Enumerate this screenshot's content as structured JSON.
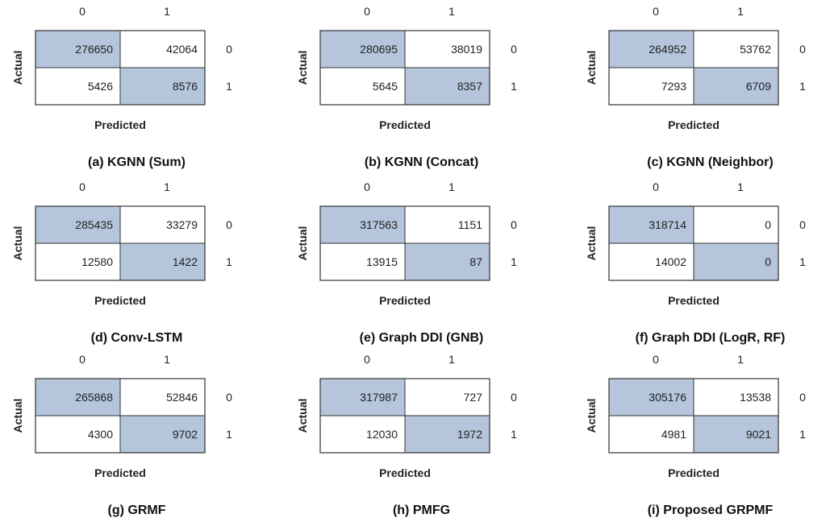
{
  "colors": {
    "diagonal": "#b4c5dc",
    "off_diagonal": "#ffffff",
    "border": "#333333"
  },
  "chart_data": [
    {
      "type": "heatmap",
      "title": "(a) KGNN (Sum)",
      "xlabel": "Predicted",
      "ylabel": "Actual",
      "col_labels": [
        "0",
        "1"
      ],
      "row_labels": [
        "0",
        "1"
      ],
      "matrix": [
        [
          276650,
          42064
        ],
        [
          5426,
          8576
        ]
      ]
    },
    {
      "type": "heatmap",
      "title": "(b) KGNN (Concat)",
      "xlabel": "Predicted",
      "ylabel": "Actual",
      "col_labels": [
        "0",
        "1"
      ],
      "row_labels": [
        "0",
        "1"
      ],
      "matrix": [
        [
          280695,
          38019
        ],
        [
          5645,
          8357
        ]
      ]
    },
    {
      "type": "heatmap",
      "title": "(c) KGNN (Neighbor)",
      "xlabel": "Predicted",
      "ylabel": "Actual",
      "col_labels": [
        "0",
        "1"
      ],
      "row_labels": [
        "0",
        "1"
      ],
      "matrix": [
        [
          264952,
          53762
        ],
        [
          7293,
          6709
        ]
      ]
    },
    {
      "type": "heatmap",
      "title": "(d) Conv-LSTM",
      "xlabel": "Predicted",
      "ylabel": "Actual",
      "col_labels": [
        "0",
        "1"
      ],
      "row_labels": [
        "0",
        "1"
      ],
      "matrix": [
        [
          285435,
          33279
        ],
        [
          12580,
          1422
        ]
      ]
    },
    {
      "type": "heatmap",
      "title": "(e) Graph DDI (GNB)",
      "xlabel": "Predicted",
      "ylabel": "Actual",
      "col_labels": [
        "0",
        "1"
      ],
      "row_labels": [
        "0",
        "1"
      ],
      "matrix": [
        [
          317563,
          1151
        ],
        [
          13915,
          87
        ]
      ]
    },
    {
      "type": "heatmap",
      "title": "(f) Graph DDI (LogR, RF)",
      "xlabel": "Predicted",
      "ylabel": "Actual",
      "col_labels": [
        "0",
        "1"
      ],
      "row_labels": [
        "0",
        "1"
      ],
      "matrix": [
        [
          318714,
          0
        ],
        [
          14002,
          0
        ]
      ]
    },
    {
      "type": "heatmap",
      "title": "(g) GRMF",
      "xlabel": "Predicted",
      "ylabel": "Actual",
      "col_labels": [
        "0",
        "1"
      ],
      "row_labels": [
        "0",
        "1"
      ],
      "matrix": [
        [
          265868,
          52846
        ],
        [
          4300,
          9702
        ]
      ]
    },
    {
      "type": "heatmap",
      "title": "(h) PMFG",
      "xlabel": "Predicted",
      "ylabel": "Actual",
      "col_labels": [
        "0",
        "1"
      ],
      "row_labels": [
        "0",
        "1"
      ],
      "matrix": [
        [
          317987,
          727
        ],
        [
          12030,
          1972
        ]
      ]
    },
    {
      "type": "heatmap",
      "title": "(i) Proposed GRPMF",
      "xlabel": "Predicted",
      "ylabel": "Actual",
      "col_labels": [
        "0",
        "1"
      ],
      "row_labels": [
        "0",
        "1"
      ],
      "matrix": [
        [
          305176,
          13538
        ],
        [
          4981,
          9021
        ]
      ]
    }
  ]
}
